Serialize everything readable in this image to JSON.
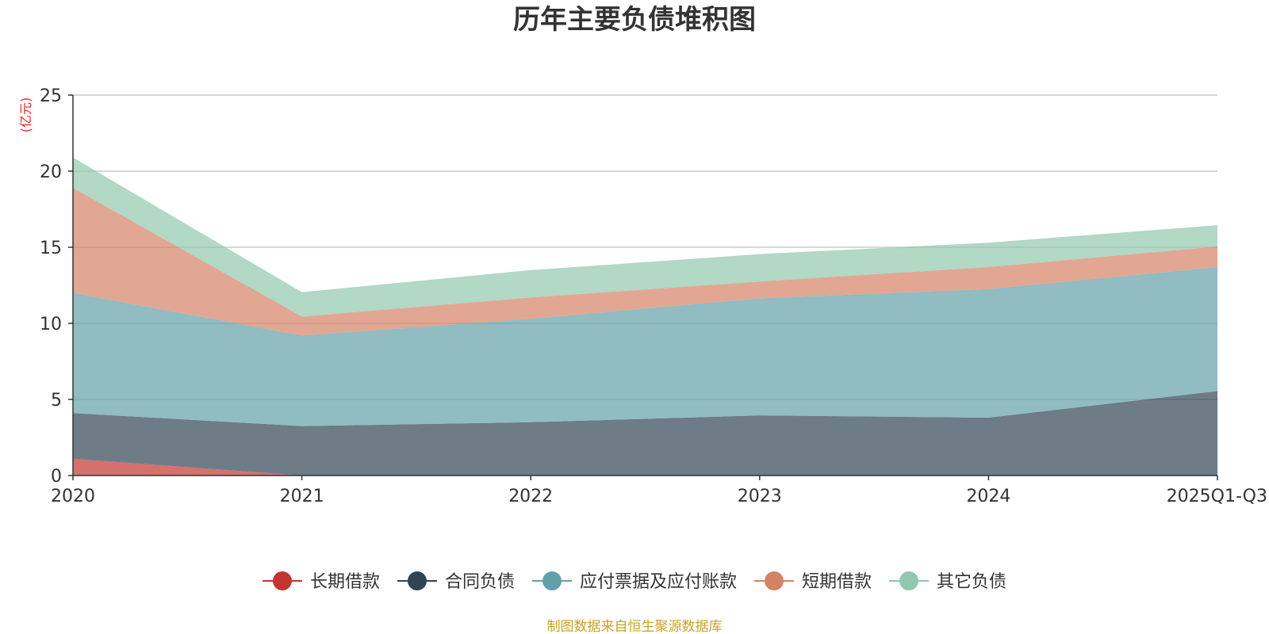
{
  "chart_data": {
    "type": "area",
    "stacked": true,
    "title": "历年主要负债堆积图",
    "unit": "(亿元)",
    "xlabel": "",
    "ylabel": "(亿元)",
    "categories": [
      "2020",
      "2021",
      "2022",
      "2023",
      "2024",
      "2025Q1-Q3"
    ],
    "ylim": [
      0,
      25
    ],
    "yticks": [
      0,
      5,
      10,
      15,
      20,
      25
    ],
    "grid": true,
    "legend_position": "bottom",
    "series": [
      {
        "name": "长期借款",
        "color": "#c23531",
        "values": [
          1.1,
          0.0,
          0.0,
          0.0,
          0.0,
          0.0
        ]
      },
      {
        "name": "合同负债",
        "color": "#2f4554",
        "values": [
          3.0,
          3.25,
          3.5,
          3.95,
          3.8,
          5.55
        ]
      },
      {
        "name": "应付票据及应付账款",
        "color": "#61a0a8",
        "values": [
          7.9,
          5.95,
          6.8,
          7.7,
          8.45,
          8.15
        ]
      },
      {
        "name": "短期借款",
        "color": "#d48265",
        "values": [
          6.9,
          1.25,
          1.4,
          1.1,
          1.45,
          1.35
        ]
      },
      {
        "name": "其它负债",
        "color": "#91c7ae",
        "values": [
          2.0,
          1.6,
          1.8,
          1.8,
          1.6,
          1.4
        ]
      }
    ],
    "source": "制图数据来自恒生聚源数据库"
  }
}
